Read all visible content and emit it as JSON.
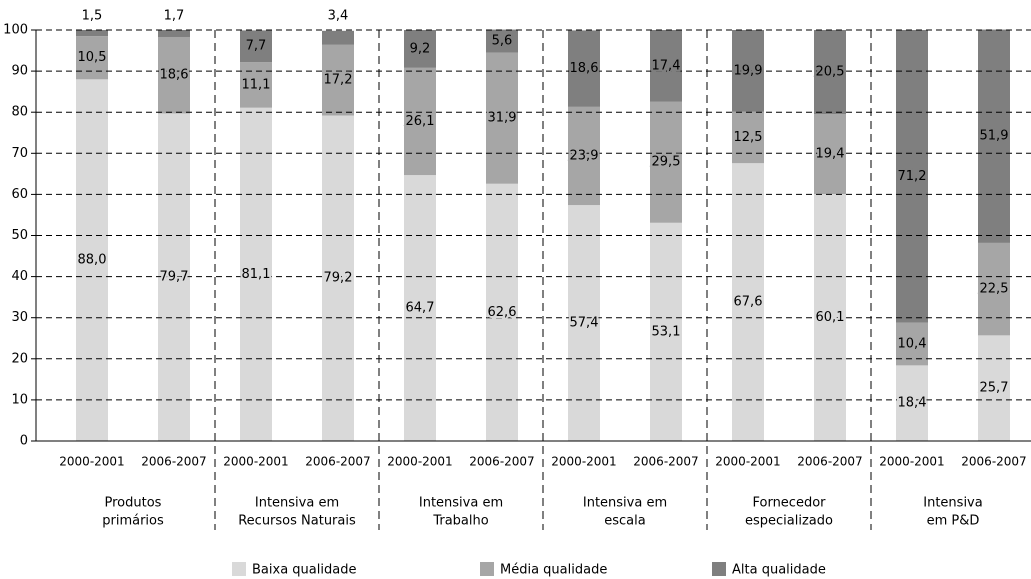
{
  "chart_data": {
    "type": "stacked_bar",
    "categories": [
      "2000-2001",
      "2006-2007",
      "2000-2001",
      "2006-2007",
      "2000-2001",
      "2006-2007",
      "2000-2001",
      "2006-2007",
      "2000-2001",
      "2006-2007",
      "2000-2001",
      "2006-2007"
    ],
    "groups": [
      [
        "Produtos",
        "primários"
      ],
      [
        "Intensiva em",
        "Recursos Naturais"
      ],
      [
        "Intensiva em",
        "Trabalho"
      ],
      [
        "Intensiva em",
        "escala"
      ],
      [
        "Fornecedor",
        "especializado"
      ],
      [
        "Intensiva",
        "em P&D"
      ]
    ],
    "series": [
      {
        "name": "Baixa qualidade",
        "color": "#d9d9d9",
        "values": [
          88.0,
          79.7,
          81.1,
          79.2,
          64.7,
          62.6,
          57.4,
          53.1,
          67.6,
          60.1,
          18.4,
          25.7
        ],
        "value_labels": [
          "88,0",
          "79,7",
          "81,1",
          "79,2",
          "64,7",
          "62,6",
          "57,4",
          "53,1",
          "67,6",
          "60,1",
          "18,4",
          "25,7"
        ]
      },
      {
        "name": "Média qualidade",
        "color": "#a6a6a6",
        "values": [
          10.5,
          18.6,
          11.1,
          17.2,
          26.1,
          31.9,
          23.9,
          29.5,
          12.5,
          19.4,
          10.4,
          22.5
        ],
        "value_labels": [
          "10,5",
          "18,6",
          "11,1",
          "17,2",
          "26,1",
          "31,9",
          "23,9",
          "29,5",
          "12,5",
          "19,4",
          "10,4",
          "22,5"
        ]
      },
      {
        "name": "Alta qualidade",
        "color": "#7f7f7f",
        "values": [
          1.5,
          1.7,
          7.7,
          3.4,
          9.2,
          5.6,
          18.6,
          17.4,
          19.9,
          20.5,
          71.2,
          51.9
        ],
        "value_labels": [
          "1,5",
          "1,7",
          "7,7",
          "3,4",
          "9,2",
          "5,6",
          "18,6",
          "17,4",
          "19,9",
          "20,5",
          "71,2",
          "51,9"
        ]
      }
    ],
    "ylim": [
      0,
      100
    ],
    "yticks": [
      0,
      10,
      20,
      30,
      40,
      50,
      60,
      70,
      80,
      90,
      100
    ],
    "grid": true
  }
}
